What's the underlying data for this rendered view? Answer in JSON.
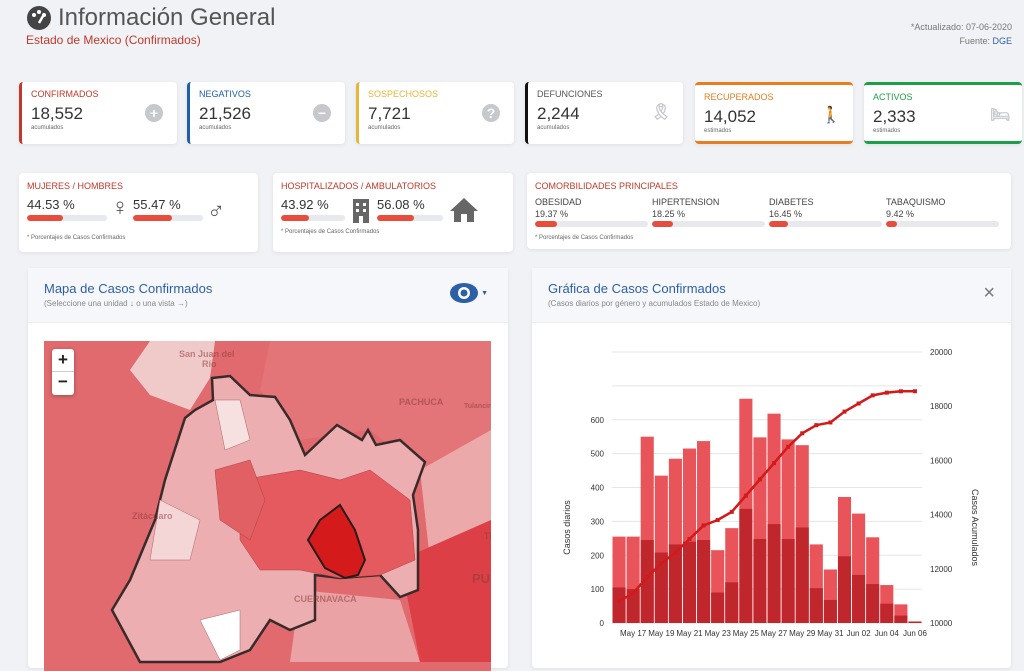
{
  "header": {
    "title": "Información General",
    "subtitle": "Estado de Mexico (Confirmados)",
    "updated": "*Actualizado: 07-06-2020",
    "source_label": "Fuente:",
    "source": "DGE",
    "icon": "dashboard-gauge-icon"
  },
  "stats": [
    {
      "label": "CONFIRMADOS",
      "value": "18,552",
      "sub": "acumulados",
      "color": "#c0392b",
      "icon": "plus-circle-icon",
      "glyph": "+"
    },
    {
      "label": "NEGATIVOS",
      "value": "21,526",
      "sub": "acumulados",
      "color": "#1f5fa8",
      "icon": "minus-circle-icon",
      "glyph": "−"
    },
    {
      "label": "SOSPECHOSOS",
      "value": "7,721",
      "sub": "acumulados",
      "color": "#e3b73a",
      "icon": "question-circle-icon",
      "glyph": "?"
    },
    {
      "label": "DEFUNCIONES",
      "value": "2,244",
      "sub": "acumulados",
      "color": "#111111",
      "icon": "ribbon-icon",
      "glyph": "🎗"
    },
    {
      "label": "RECUPERADOS",
      "value": "14,052",
      "sub": "estimados",
      "color": "#e67e22",
      "icon": "walking-icon",
      "glyph": "🚶"
    },
    {
      "label": "ACTIVOS",
      "value": "2,333",
      "sub": "estimados",
      "color": "#1e9e4a",
      "icon": "bed-icon",
      "glyph": "🛏"
    }
  ],
  "gender": {
    "label": "MUJERES / HOMBRES",
    "women": "44.53 %",
    "men": "55.47 %",
    "women_pct": 44.53,
    "men_pct": 55.47,
    "note": "* Porcentajes  de Casos Confirmados"
  },
  "hosp": {
    "label": "HOSPITALIZADOS / AMBULATORIOS",
    "hosp": "43.92 %",
    "amb": "56.08 %",
    "hosp_pct": 43.92,
    "amb_pct": 56.08,
    "note": "* Porcentajes  de Casos Confirmados"
  },
  "comorb": {
    "label": "COMORBILIDADES PRINCIPALES",
    "items": [
      {
        "name": "OBESIDAD",
        "value": "19.37 %",
        "pct": 19.37
      },
      {
        "name": "HIPERTENSION",
        "value": "18.25 %",
        "pct": 18.25
      },
      {
        "name": "DIABETES",
        "value": "16.45 %",
        "pct": 16.45
      },
      {
        "name": "TABAQUISMO",
        "value": "9.42 %",
        "pct": 9.42
      }
    ],
    "note": "* Porcentajes  de Casos Confirmados"
  },
  "map": {
    "title": "Mapa de Casos Confirmados",
    "subtitle": "(Seleccione una unidad ↓ o una vista →)",
    "zoom_in": "+",
    "zoom_out": "−",
    "labels": [
      "San Juan del",
      "Río",
      "PACHUCA",
      "Tulancingo",
      "Zitácuaro",
      "CUERNAVACA",
      "Tlaxca",
      "PUE"
    ]
  },
  "chart_panel": {
    "title": "Gráfica de Casos Confirmados",
    "subtitle": "(Casos diarios por género y acumulados Estado de Mexico)",
    "close": "×"
  },
  "chart_data": {
    "type": "bar",
    "ylabel": "Casos diarios",
    "y2label": "Casos Acumulados",
    "ylim": [
      0,
      800
    ],
    "yticks": [
      0,
      100,
      200,
      300,
      400,
      500,
      600
    ],
    "y2lim": [
      10000,
      20000
    ],
    "y2ticks": [
      10000,
      12000,
      14000,
      16000,
      18000,
      20000
    ],
    "categories": [
      "May 16",
      "May 17",
      "May 18",
      "May 19",
      "May 20",
      "May 21",
      "May 22",
      "May 23",
      "May 24",
      "May 25",
      "May 26",
      "May 27",
      "May 28",
      "May 29",
      "May 30",
      "May 31",
      "Jun 01",
      "Jun 02",
      "Jun 03",
      "Jun 04",
      "Jun 05",
      "Jun 06"
    ],
    "xticks": [
      "May 17",
      "May 19",
      "May 21",
      "May 23",
      "May 25",
      "May 27",
      "May 29",
      "May 31",
      "Jun 02",
      "Jun 04",
      "Jun 06"
    ],
    "series": [
      {
        "type": "bar",
        "values": [
          255,
          255,
          550,
          435,
          485,
          515,
          537,
          215,
          280,
          662,
          548,
          618,
          542,
          525,
          232,
          158,
          372,
          323,
          253,
          112,
          55,
          5
        ],
        "color": "#e8545a"
      },
      {
        "type": "bar",
        "values": [
          105,
          100,
          245,
          208,
          232,
          240,
          245,
          90,
          120,
          337,
          248,
          292,
          248,
          282,
          103,
          68,
          197,
          142,
          115,
          57,
          22,
          3
        ],
        "color": "#c0272d"
      },
      {
        "type": "line",
        "axis": "right",
        "values": [
          10800,
          11100,
          11700,
          12200,
          12600,
          13100,
          13600,
          13800,
          14100,
          14700,
          15300,
          15900,
          16500,
          17000,
          17300,
          17400,
          17800,
          18100,
          18400,
          18500,
          18550,
          18552
        ],
        "color": "#d11a1a"
      }
    ],
    "grid": true
  }
}
